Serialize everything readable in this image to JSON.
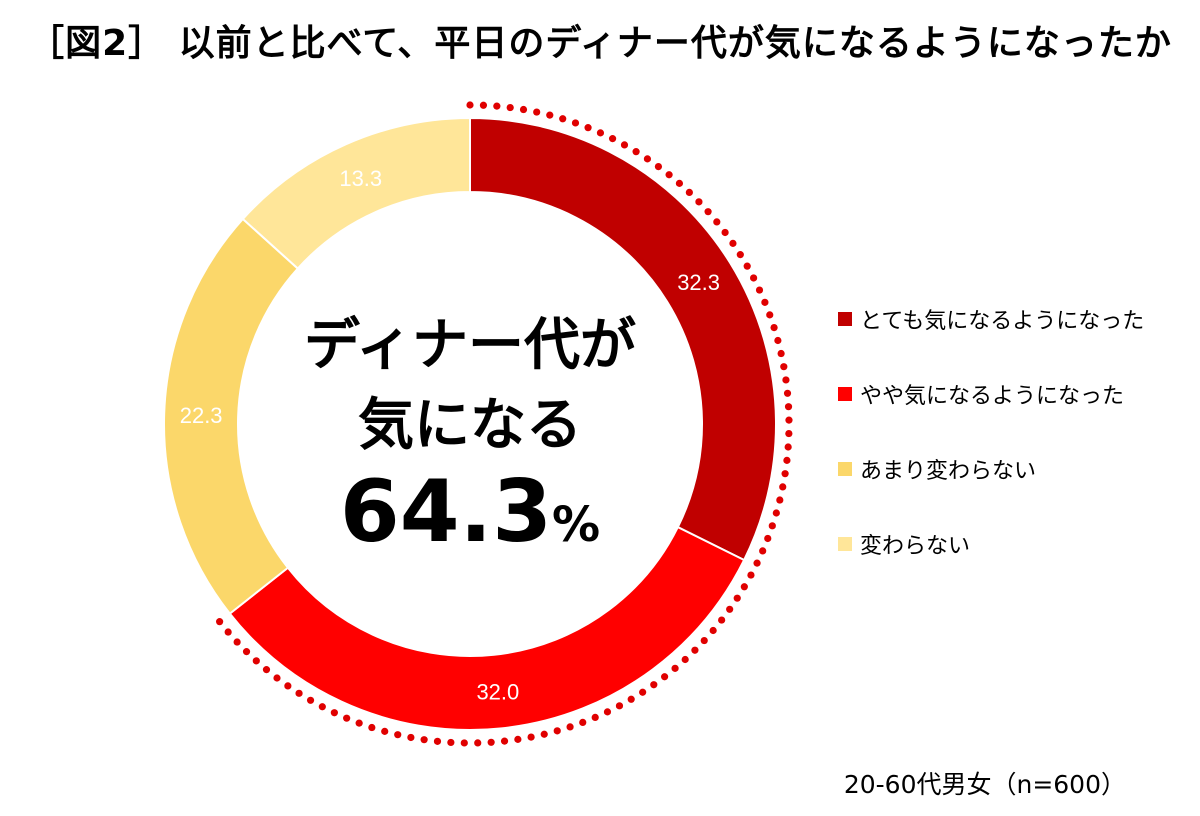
{
  "title": "［図2］ 以前と比べて、平日のディナー代が気になるようになったか",
  "center": {
    "line1": "ディナー代が",
    "line2": "気になる",
    "value": "64.3",
    "unit": "%"
  },
  "note": "20-60代男女（n=600）",
  "colors": {
    "とても気になるようになった": "#C00000",
    "やや気になるようになった": "#FF0000",
    "あまり変わらない": "#FBD76A",
    "変わらない": "#FFE699",
    "dots": "#E00000"
  },
  "chart_data": {
    "type": "pie",
    "donut": true,
    "categories": [
      "とても気になるようになった",
      "やや気になるようになった",
      "あまり変わらない",
      "変わらない"
    ],
    "values": [
      32.3,
      32.0,
      22.3,
      13.3
    ],
    "labels": [
      "32.3",
      "32.0",
      "22.3",
      "13.3"
    ],
    "legend_position": "right"
  }
}
